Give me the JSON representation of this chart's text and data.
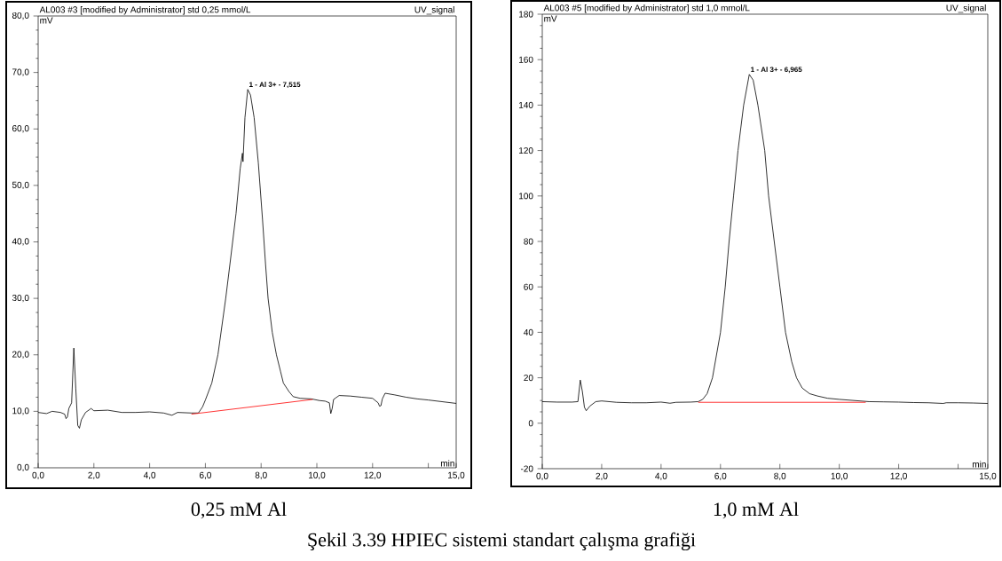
{
  "chart_data": [
    {
      "type": "line",
      "title": "AL003 #3 [modified by Administrator]   std  0,25 mmol/L",
      "subtitle": "0,25 mM Al",
      "xlabel": "min",
      "ylabel": "mV",
      "annotations": [
        "UV_signal",
        {
          "text": "1 - Al  3+ - 7,515",
          "x": 7.515,
          "y": 67
        }
      ],
      "xlim": [
        0,
        15
      ],
      "ylim": [
        0,
        80
      ],
      "xticks": [
        {
          "value": 0,
          "label": "0,0"
        },
        {
          "value": 2,
          "label": "2,0"
        },
        {
          "value": 4,
          "label": "4,0"
        },
        {
          "value": 6,
          "label": "6,0"
        },
        {
          "value": 8,
          "label": "8,0"
        },
        {
          "value": 10,
          "label": "10,0"
        },
        {
          "value": 12,
          "label": "12,0"
        },
        {
          "value": 14,
          "label": null
        },
        {
          "value": 15,
          "label": "15,0"
        }
      ],
      "yticks": [
        {
          "value": 0,
          "label": "0,0"
        },
        {
          "value": 10,
          "label": "10,0"
        },
        {
          "value": 20,
          "label": "20,0"
        },
        {
          "value": 30,
          "label": "30,0"
        },
        {
          "value": 40,
          "label": "40,0"
        },
        {
          "value": 50,
          "label": "50,0"
        },
        {
          "value": 60,
          "label": "60,0"
        },
        {
          "value": 70,
          "label": "70,0"
        },
        {
          "value": 80,
          "label": "80,0"
        }
      ],
      "series": [
        {
          "color": "#000000",
          "x": [
            0,
            0.3,
            0.5,
            0.8,
            0.95,
            1.0,
            1.05,
            1.1,
            1.2,
            1.28,
            1.35,
            1.42,
            1.48,
            1.55,
            1.7,
            1.9,
            2.0,
            2.5,
            3.0,
            3.5,
            4.0,
            4.5,
            4.8,
            5.0,
            5.5,
            5.75,
            5.9,
            6.0,
            6.23,
            6.45,
            6.73,
            6.88,
            7.1,
            7.25,
            7.33,
            7.35,
            7.42,
            7.52,
            7.62,
            7.75,
            7.9,
            8.05,
            8.16,
            8.25,
            8.4,
            8.55,
            8.7,
            8.8,
            9.0,
            9.15,
            9.4,
            9.8,
            10.1,
            10.3,
            10.45,
            10.5,
            10.55,
            10.6,
            10.8,
            11.2,
            11.6,
            12.0,
            12.2,
            12.25,
            12.3,
            12.35,
            12.45,
            12.8,
            13.2,
            13.6,
            14.0,
            14.5,
            15.0
          ],
          "values": [
            9.8,
            9.6,
            10.0,
            9.8,
            9.5,
            8.7,
            9.0,
            10.5,
            11.5,
            21.2,
            14,
            7.5,
            7.0,
            8.5,
            9.8,
            10.5,
            10.1,
            10.2,
            9.8,
            9.8,
            9.9,
            9.7,
            9.3,
            9.8,
            9.7,
            9.7,
            10.8,
            12,
            15,
            20,
            30,
            36,
            45,
            53,
            55.7,
            54.2,
            62,
            67,
            66,
            62,
            54,
            44,
            36,
            30,
            24,
            20,
            17,
            15,
            13.5,
            12.6,
            12.3,
            12.2,
            11.9,
            11.8,
            11.5,
            9.6,
            10.5,
            12.1,
            12.8,
            12.7,
            12.5,
            12.3,
            11.5,
            10.9,
            11.0,
            12.2,
            13.2,
            12.9,
            12.5,
            12.2,
            12.0,
            11.7,
            11.4
          ]
        },
        {
          "color": "#ff0000",
          "x": [
            5.5,
            9.85
          ],
          "values": [
            9.5,
            12.1
          ]
        }
      ]
    },
    {
      "type": "line",
      "title": "AL003 #5 [modified by Administrator]     std  1,0 mmol/L",
      "subtitle": "1,0 mM Al",
      "xlabel": "min",
      "ylabel": "mV",
      "annotations": [
        "UV_signal",
        {
          "text": "1 - Al  3+ - 6,965",
          "x": 6.965,
          "y": 153.5
        }
      ],
      "xlim": [
        0,
        15
      ],
      "ylim": [
        -20,
        180
      ],
      "xticks": [
        {
          "value": 0,
          "label": "0,0"
        },
        {
          "value": 2,
          "label": "2,0"
        },
        {
          "value": 4,
          "label": "4,0"
        },
        {
          "value": 6,
          "label": "6,0"
        },
        {
          "value": 8,
          "label": "8,0"
        },
        {
          "value": 10,
          "label": "10,0"
        },
        {
          "value": 12,
          "label": "12,0"
        },
        {
          "value": 14,
          "label": null
        },
        {
          "value": 15,
          "label": "15,0"
        }
      ],
      "yticks": [
        -20,
        0,
        20,
        40,
        60,
        80,
        100,
        120,
        140,
        160,
        180
      ],
      "series": [
        {
          "color": "#000000",
          "x": [
            0,
            0.5,
            1.0,
            1.2,
            1.28,
            1.35,
            1.42,
            1.48,
            1.6,
            1.8,
            2.0,
            2.5,
            3.0,
            3.5,
            4.0,
            4.3,
            4.5,
            5.0,
            5.25,
            5.4,
            5.55,
            5.73,
            6.0,
            6.16,
            6.29,
            6.44,
            6.59,
            6.78,
            6.97,
            7.1,
            7.26,
            7.49,
            7.62,
            7.81,
            8.0,
            8.19,
            8.4,
            8.56,
            8.75,
            9.0,
            9.26,
            9.6,
            10.0,
            10.5,
            11.0,
            11.5,
            12.0,
            12.5,
            13.0,
            13.5,
            13.6,
            14.0,
            14.5,
            15.0
          ],
          "values": [
            9.5,
            9.3,
            9.3,
            9.5,
            19,
            14,
            7,
            5.5,
            7.5,
            9.5,
            9.8,
            9.2,
            9.0,
            9.0,
            9.3,
            8.8,
            9.2,
            9.3,
            9.5,
            10.5,
            13,
            20,
            40,
            60,
            80,
            100,
            120,
            140,
            153.5,
            151,
            140,
            120,
            100,
            80,
            60,
            40,
            27,
            20,
            15.5,
            13,
            12,
            11,
            10.5,
            10,
            9.5,
            9.4,
            9.3,
            9.1,
            9.0,
            8.7,
            9.0,
            9.0,
            8.9,
            8.7
          ]
        },
        {
          "color": "#ff0000",
          "x": [
            5.25,
            10.89
          ],
          "values": [
            9.2,
            9.2
          ]
        }
      ]
    },
    {
      "type": "other",
      "title": "Şekil 3.39 HPIEC sistemi standart çalışma grafiği"
    }
  ]
}
